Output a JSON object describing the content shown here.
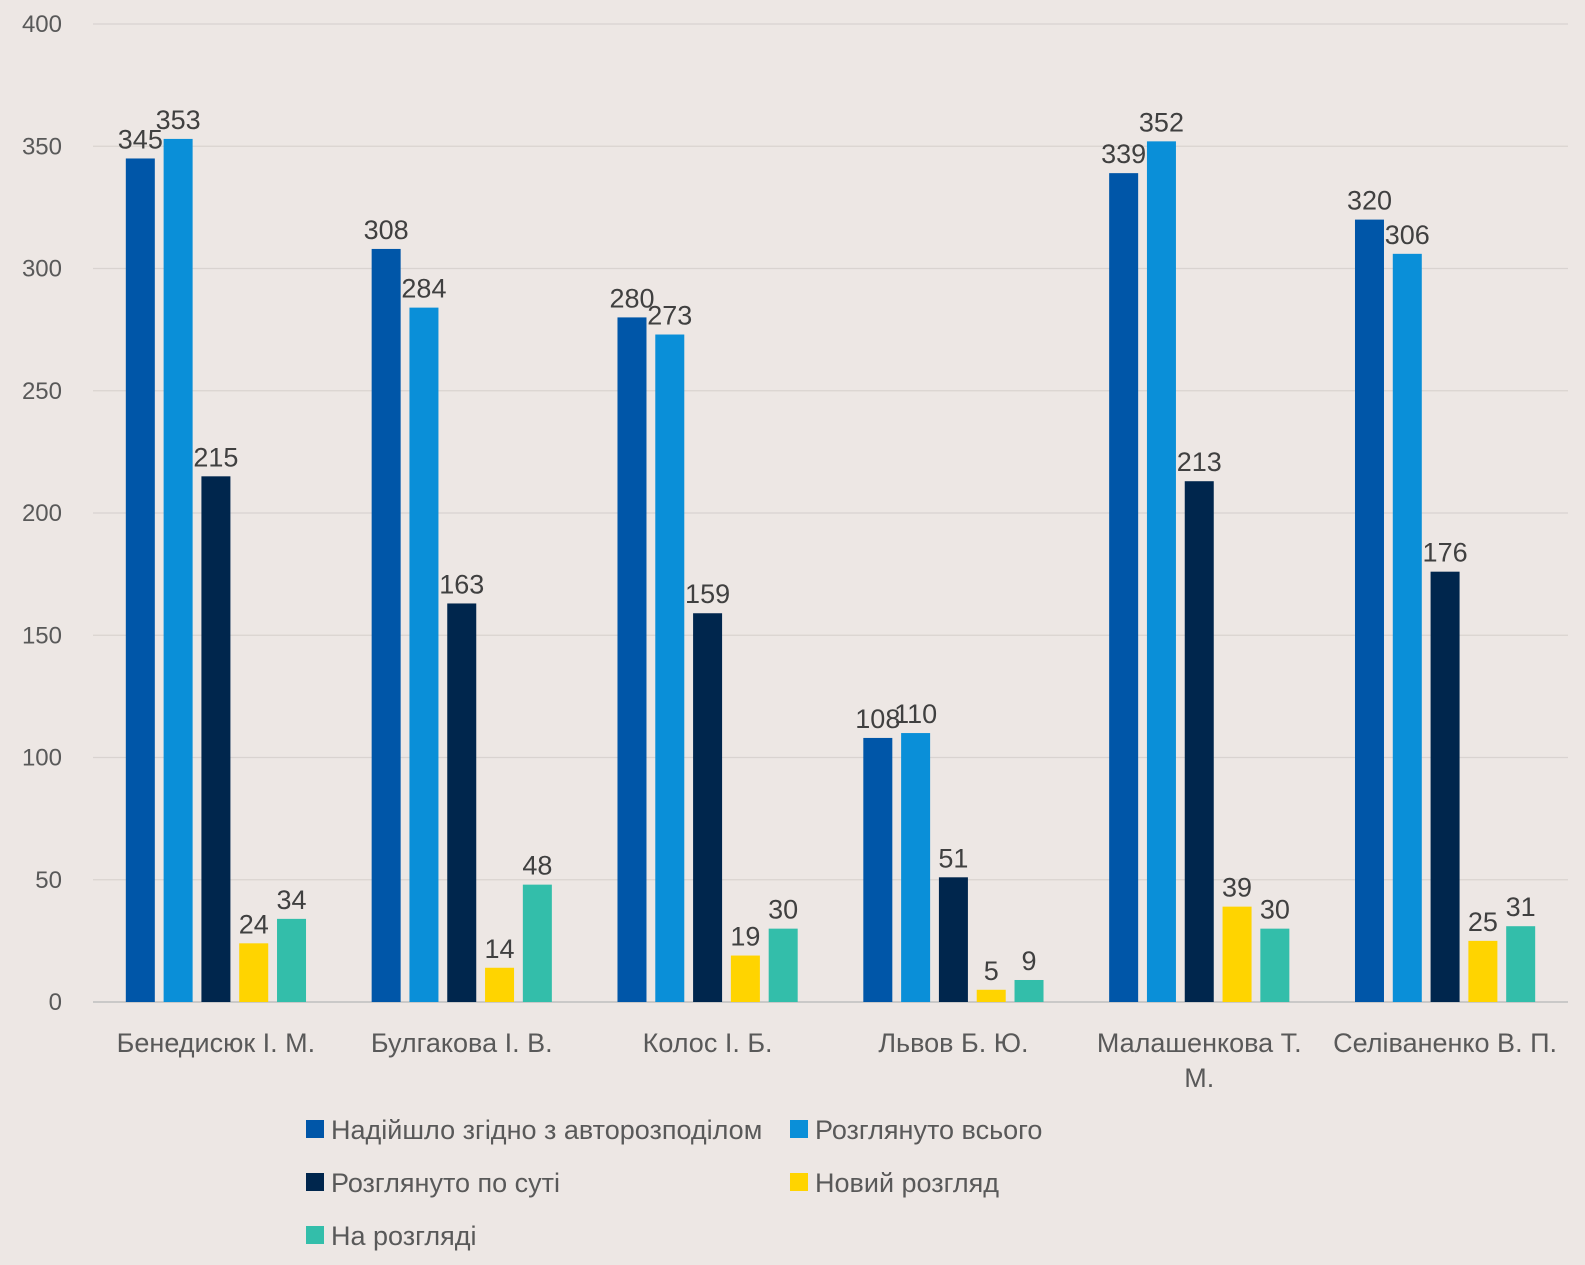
{
  "chart_data": {
    "type": "bar",
    "categories": [
      [
        "Бенедисюк І. М."
      ],
      [
        "Булгакова І. В."
      ],
      [
        "Колос І. Б."
      ],
      [
        "Львов Б. Ю."
      ],
      [
        "Малашенкова Т.",
        "М."
      ],
      [
        "Селіваненко В. П."
      ]
    ],
    "series": [
      {
        "name": "Надійшло згідно з авторозподілом",
        "color": "#0056A8",
        "values": [
          345,
          308,
          280,
          108,
          339,
          320
        ]
      },
      {
        "name": "Розглянуто всього",
        "color": "#0A8FD8",
        "values": [
          353,
          284,
          273,
          110,
          352,
          306
        ]
      },
      {
        "name": "Розглянуто по суті",
        "color": "#00264D",
        "values": [
          215,
          163,
          159,
          51,
          213,
          176
        ]
      },
      {
        "name": "Новий розгляд",
        "color": "#FFD400",
        "values": [
          24,
          14,
          19,
          5,
          39,
          25
        ]
      },
      {
        "name": "На розгляді",
        "color": "#33BEAA",
        "values": [
          34,
          48,
          30,
          9,
          30,
          31
        ]
      }
    ],
    "ylim": [
      0,
      400
    ],
    "yticks": [
      0,
      50,
      100,
      150,
      200,
      250,
      300,
      350,
      400
    ],
    "grid": true,
    "legend_position": "bottom",
    "data_labels": true
  }
}
